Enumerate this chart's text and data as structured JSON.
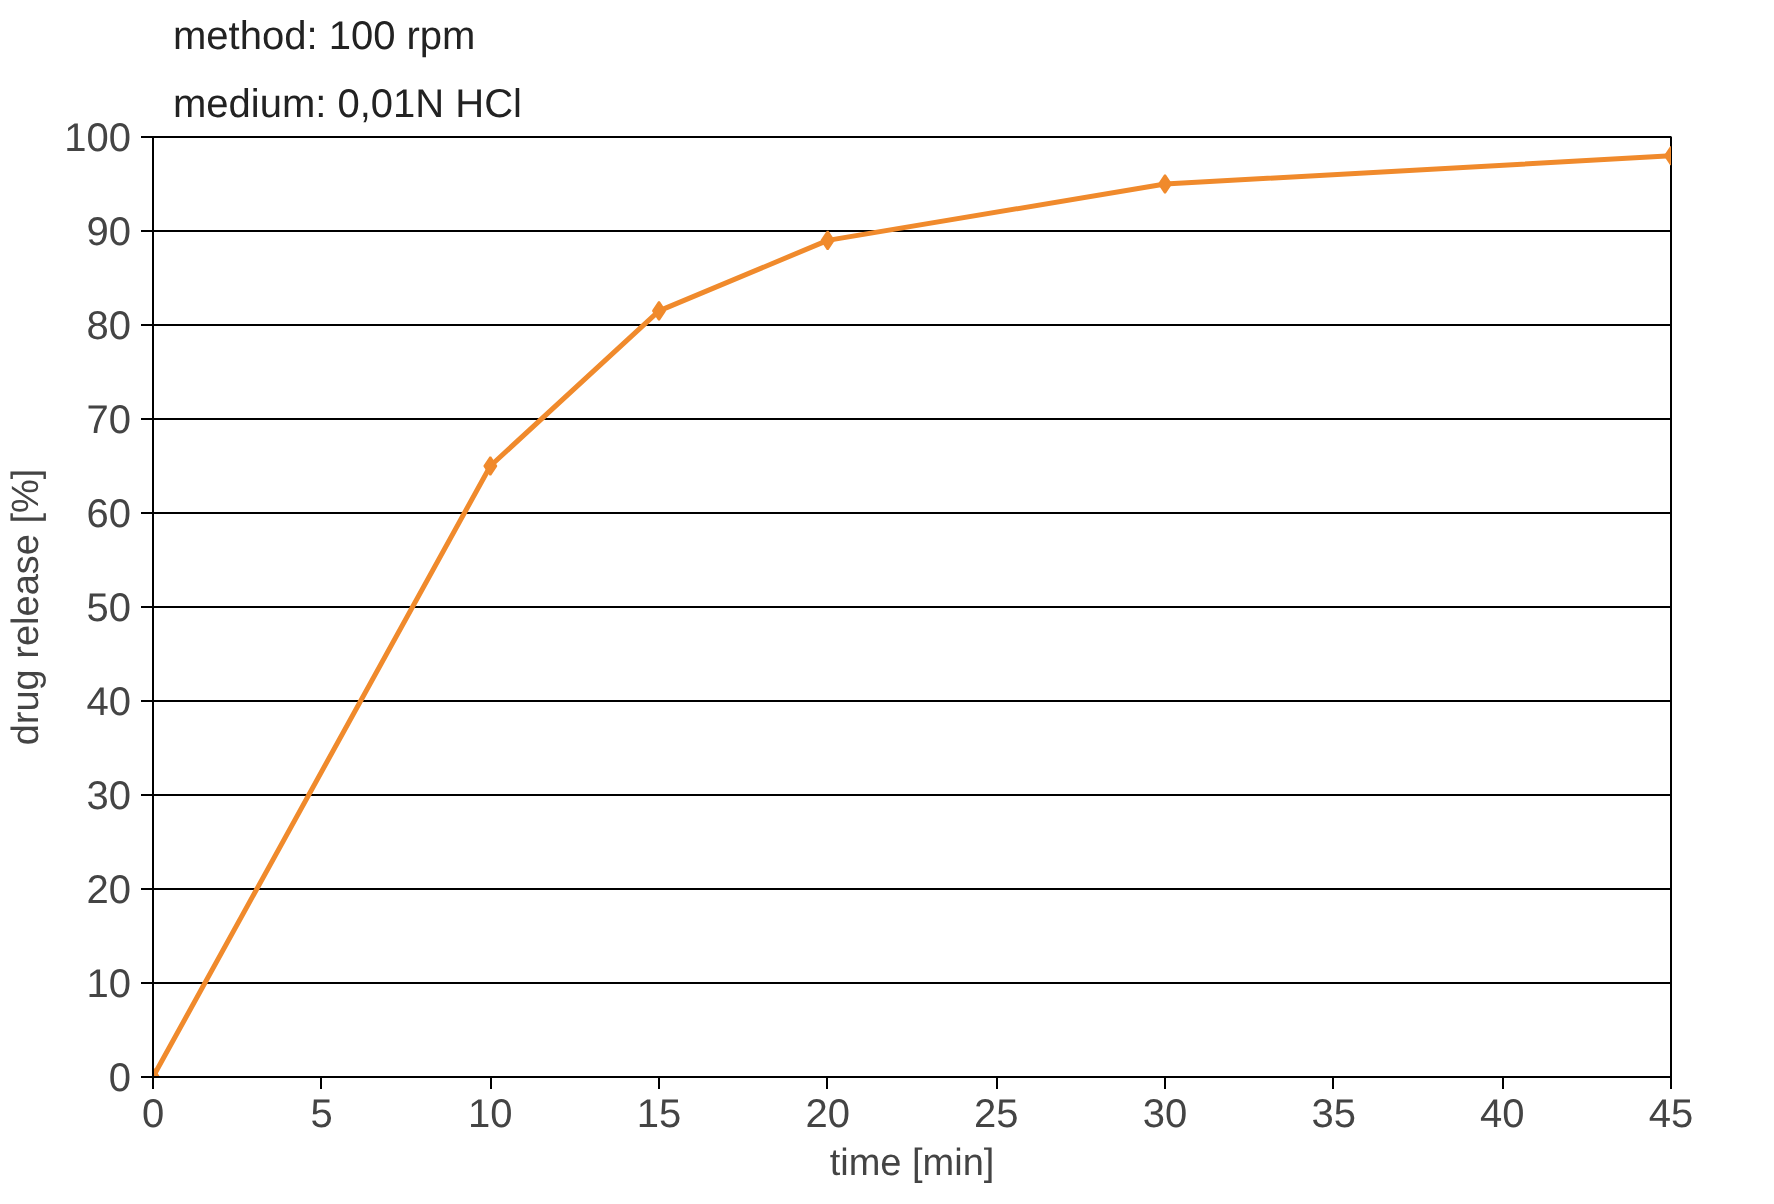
{
  "chart_data": {
    "type": "line",
    "xlabel": "time [min]",
    "ylabel": "drug release [%]",
    "annotations": [
      "method: 100 rpm",
      "medium: 0,01N HCl"
    ],
    "x": [
      0,
      10,
      15,
      20,
      30,
      45
    ],
    "series": [
      {
        "color": "#f08a2c",
        "values": [
          0,
          65,
          81.5,
          89,
          95,
          98
        ]
      }
    ],
    "xlim": [
      0,
      45
    ],
    "ylim": [
      0,
      100
    ],
    "xticks": [
      0,
      5,
      10,
      15,
      20,
      25,
      30,
      35,
      40,
      45
    ],
    "yticks": [
      0,
      10,
      20,
      30,
      40,
      50,
      60,
      70,
      80,
      90,
      100
    ],
    "grid": "y",
    "marker": "diamond",
    "line_style": "solid"
  }
}
